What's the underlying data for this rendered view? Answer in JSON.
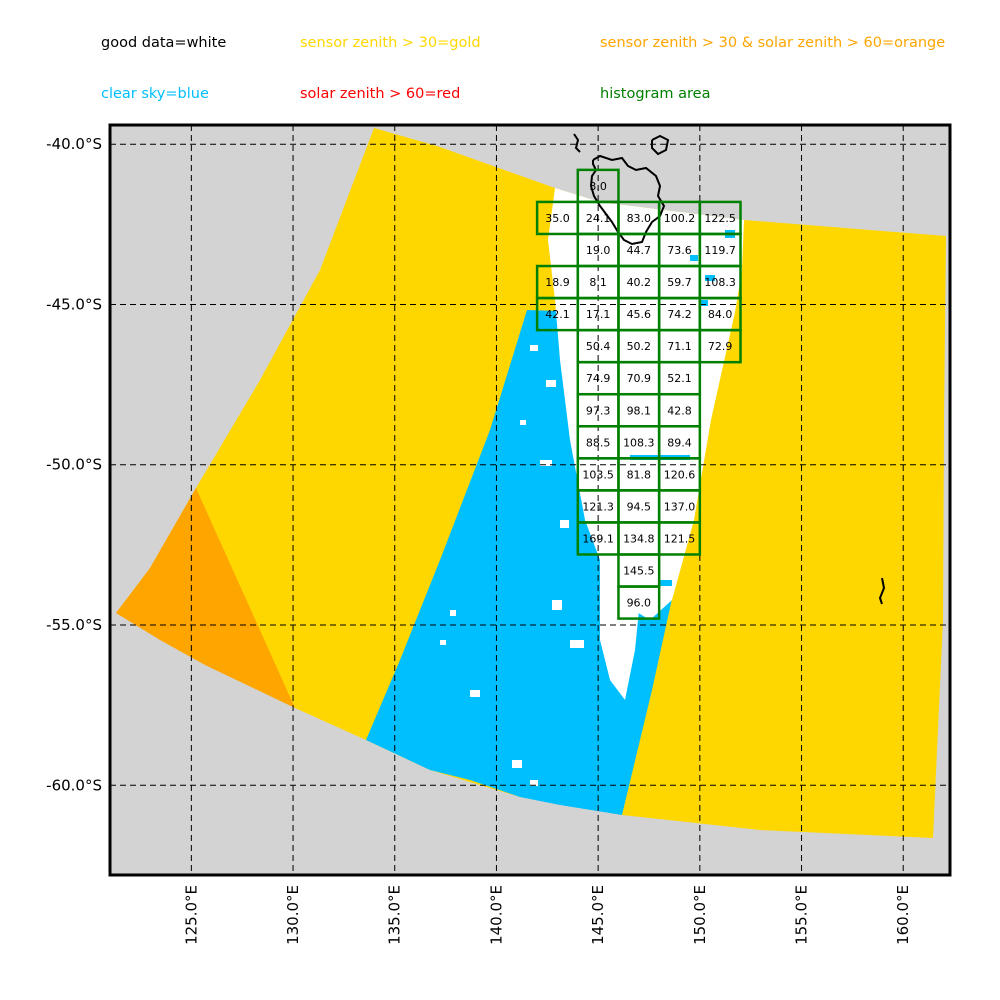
{
  "legend": {
    "good": {
      "label": "good data=white",
      "color": "#000000"
    },
    "gold": {
      "label": "sensor zenith > 30=gold",
      "color": "#FFD700"
    },
    "orange": {
      "label": "sensor zenith > 30 & solar zenith > 60=orange",
      "color": "#FFA500"
    },
    "blue": {
      "label": "clear sky=blue",
      "color": "#00BFFF"
    },
    "red": {
      "label": "solar zenith > 60=red",
      "color": "#FF0000"
    },
    "hist": {
      "label": "histogram area",
      "color": "#008000"
    }
  },
  "map": {
    "background_color": "#D3D3D3",
    "lon_range": [
      121,
      162.3
    ],
    "lat_range": [
      -62.8,
      -39.4
    ],
    "lat_ticks": [
      {
        "value": -40,
        "label": "-40.0°S"
      },
      {
        "value": -45,
        "label": "-45.0°S"
      },
      {
        "value": -50,
        "label": "-50.0°S"
      },
      {
        "value": -55,
        "label": "-55.0°S"
      },
      {
        "value": -60,
        "label": "-60.0°S"
      }
    ],
    "lon_ticks": [
      {
        "value": 125,
        "label": "125.0°E"
      },
      {
        "value": 130,
        "label": "130.0°E"
      },
      {
        "value": 135,
        "label": "135.0°E"
      },
      {
        "value": 140,
        "label": "140.0°E"
      },
      {
        "value": 145,
        "label": "145.0°E"
      },
      {
        "value": 150,
        "label": "150.0°E"
      },
      {
        "value": 155,
        "label": "155.0°E"
      },
      {
        "value": 160,
        "label": "160.0°E"
      }
    ],
    "histogram_cells": [
      {
        "lon": 144,
        "lat": -40.8,
        "value": "3.0"
      },
      {
        "lon": 142,
        "lat": -41.8,
        "value": "35.0"
      },
      {
        "lon": 144,
        "lat": -41.8,
        "value": "24.1"
      },
      {
        "lon": 146,
        "lat": -41.8,
        "value": "83.0"
      },
      {
        "lon": 148,
        "lat": -41.8,
        "value": "100.2"
      },
      {
        "lon": 150,
        "lat": -41.8,
        "value": "122.5"
      },
      {
        "lon": 144,
        "lat": -42.8,
        "value": "19.0"
      },
      {
        "lon": 146,
        "lat": -42.8,
        "value": "44.7"
      },
      {
        "lon": 148,
        "lat": -42.8,
        "value": "73.6"
      },
      {
        "lon": 150,
        "lat": -42.8,
        "value": "119.7"
      },
      {
        "lon": 142,
        "lat": -43.8,
        "value": "18.9"
      },
      {
        "lon": 144,
        "lat": -43.8,
        "value": "8.1"
      },
      {
        "lon": 146,
        "lat": -43.8,
        "value": "40.2"
      },
      {
        "lon": 148,
        "lat": -43.8,
        "value": "59.7"
      },
      {
        "lon": 150,
        "lat": -43.8,
        "value": "108.3"
      },
      {
        "lon": 142,
        "lat": -44.8,
        "value": "42.1"
      },
      {
        "lon": 144,
        "lat": -44.8,
        "value": "17.1"
      },
      {
        "lon": 146,
        "lat": -44.8,
        "value": "45.6"
      },
      {
        "lon": 148,
        "lat": -44.8,
        "value": "74.2"
      },
      {
        "lon": 150,
        "lat": -44.8,
        "value": "84.0"
      },
      {
        "lon": 144,
        "lat": -45.8,
        "value": "50.4"
      },
      {
        "lon": 146,
        "lat": -45.8,
        "value": "50.2"
      },
      {
        "lon": 148,
        "lat": -45.8,
        "value": "71.1"
      },
      {
        "lon": 150,
        "lat": -45.8,
        "value": "72.9"
      },
      {
        "lon": 144,
        "lat": -46.8,
        "value": "74.9"
      },
      {
        "lon": 146,
        "lat": -46.8,
        "value": "70.9"
      },
      {
        "lon": 148,
        "lat": -46.8,
        "value": "52.1"
      },
      {
        "lon": 144,
        "lat": -47.8,
        "value": "97.3"
      },
      {
        "lon": 146,
        "lat": -47.8,
        "value": "98.1"
      },
      {
        "lon": 148,
        "lat": -47.8,
        "value": "42.8"
      },
      {
        "lon": 144,
        "lat": -48.8,
        "value": "88.5"
      },
      {
        "lon": 146,
        "lat": -48.8,
        "value": "108.3"
      },
      {
        "lon": 148,
        "lat": -48.8,
        "value": "89.4"
      },
      {
        "lon": 144,
        "lat": -49.8,
        "value": "103.5"
      },
      {
        "lon": 146,
        "lat": -49.8,
        "value": "81.8"
      },
      {
        "lon": 148,
        "lat": -49.8,
        "value": "120.6"
      },
      {
        "lon": 144,
        "lat": -50.8,
        "value": "121.3"
      },
      {
        "lon": 146,
        "lat": -50.8,
        "value": "94.5"
      },
      {
        "lon": 148,
        "lat": -50.8,
        "value": "137.0"
      },
      {
        "lon": 144,
        "lat": -51.8,
        "value": "169.1"
      },
      {
        "lon": 146,
        "lat": -51.8,
        "value": "134.8"
      },
      {
        "lon": 148,
        "lat": -51.8,
        "value": "121.5"
      },
      {
        "lon": 146,
        "lat": -52.8,
        "value": "145.5"
      },
      {
        "lon": 146,
        "lat": -53.8,
        "value": "96.0"
      }
    ]
  }
}
